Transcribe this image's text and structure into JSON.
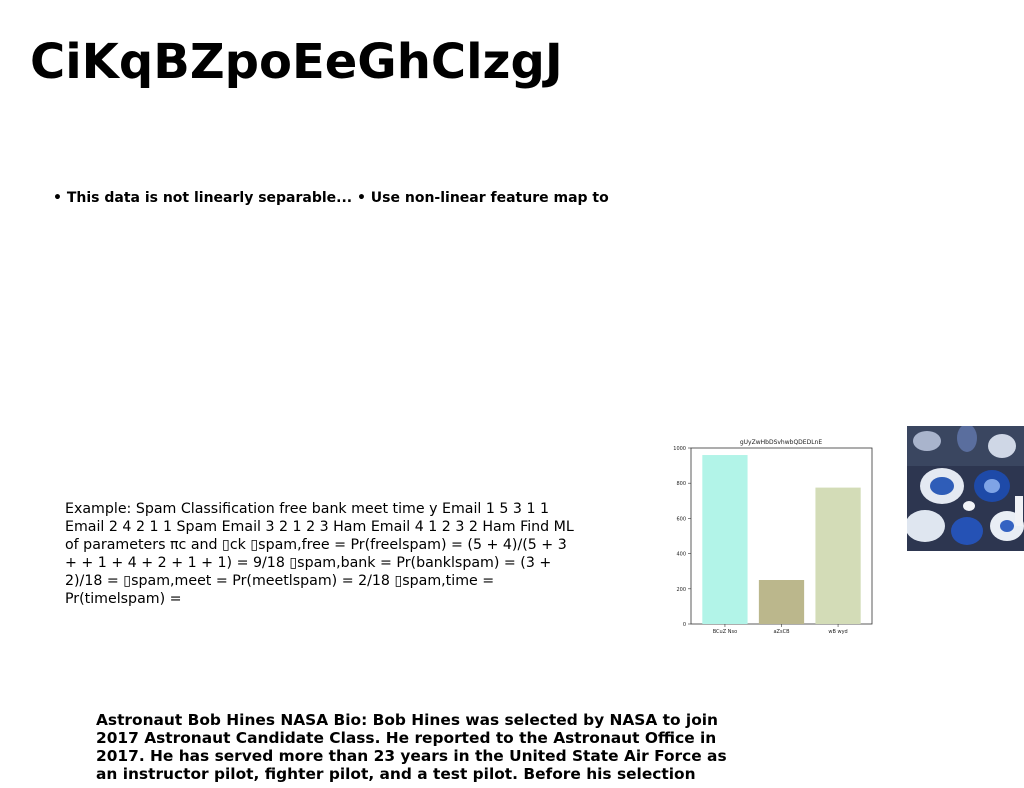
{
  "title": "CiKqBZpoEeGhClzgJ",
  "bullets_text": "• This data is not linearly separable... • Use non-linear feature map to",
  "example_text": "Example: Spam Classification free bank meet time y Email 1 5 3 1 1 Email 2 4 2 1 1 Spam Email 3 2 1 2 3 Ham Email 4 1 2 3 2 Ham Find ML of parameters πc and ▯ck ▯spam,free = Pr(freelspam) = (5 + 4)/(5 + 3 + + 1 + 4 + 2 + 1 + 1) = 9/18 ▯spam,bank = Pr(banklspam) = (3 + 2)/18 = ▯spam,meet = Pr(meetlspam) = 2/18 ▯spam,time = Pr(timelspam) =",
  "bio_text": "Astronaut Bob Hines NASA Bio: Bob Hines was selected by NASA to join 2017 Astronaut Candidate Class. He reported to the Astronaut Office in 2017. He has served more than 23 years in the United State Air Force as an instructor pilot, fighter pilot, and a test pilot. Before his selection",
  "chart_data": {
    "type": "bar",
    "title": "gUyZwHbDSvhwbQDEDLnE",
    "categories": [
      "BCuZ Nso",
      "aZsCB",
      "wB wyd"
    ],
    "values": [
      960,
      250,
      775
    ],
    "colors": [
      "#b2f4e8",
      "#bbb78c",
      "#d3dcb7"
    ],
    "ylim": [
      0,
      1000
    ],
    "yticks": [
      0,
      200,
      400,
      600,
      800,
      1000
    ],
    "xlabel": "",
    "ylabel": "",
    "grid": false
  }
}
